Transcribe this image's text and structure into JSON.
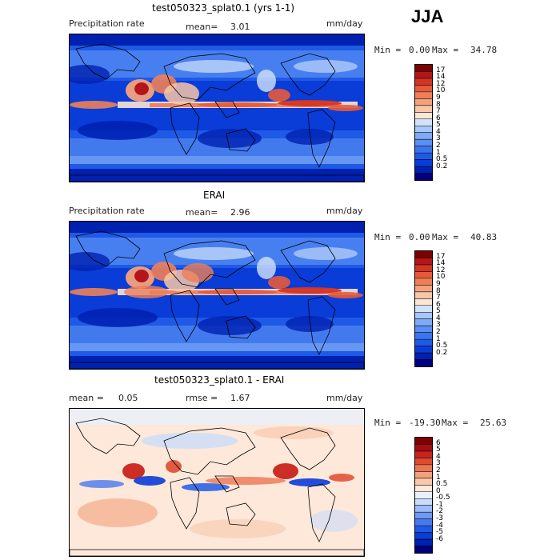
{
  "season": "JJA",
  "colormaps": {
    "precip": [
      "#00007f",
      "#0020b0",
      "#0a3cd8",
      "#1f5ae6",
      "#3b74ee",
      "#5a8ff3",
      "#7faaf6",
      "#a8c6f8",
      "#d2e2fa",
      "#fbe6d6",
      "#f8c6a8",
      "#f4a27d",
      "#ee7f58",
      "#e55a3a",
      "#d43424",
      "#b3161a",
      "#7f0000"
    ],
    "diff": [
      "#00007f",
      "#0020b0",
      "#0a3cd8",
      "#1f5ae6",
      "#4779ee",
      "#6f98f3",
      "#9cbcf7",
      "#c9dcfa",
      "#e8f0fb",
      "#fde8da",
      "#f9c8ab",
      "#f3a07c",
      "#eb7651",
      "#df4b2e",
      "#c9241c",
      "#a50d13",
      "#7f0000"
    ]
  },
  "chart_data": [
    {
      "type": "heatmap",
      "title": "test050323_splat0.1 (yrs 1-1)",
      "variable": "Precipitation rate",
      "mean_label": "mean=",
      "mean": "3.01",
      "units": "mm/day",
      "min_label": "Min =",
      "min": "0.00",
      "max_label": "Max =",
      "max": "34.78",
      "colorbar_levels": [
        "17",
        "14",
        "12",
        "10",
        "9",
        "8",
        "7",
        "6",
        "5",
        "4",
        "3",
        "2",
        "1",
        "0.5",
        "0.2"
      ]
    },
    {
      "type": "heatmap",
      "title": "ERAI",
      "variable": "Precipitation rate",
      "mean_label": "mean=",
      "mean": "2.96",
      "units": "mm/day",
      "min_label": "Min =",
      "min": "0.00",
      "max_label": "Max =",
      "max": "40.83",
      "colorbar_levels": [
        "17",
        "14",
        "12",
        "10",
        "9",
        "8",
        "7",
        "6",
        "5",
        "4",
        "3",
        "2",
        "1",
        "0.5",
        "0.2"
      ]
    },
    {
      "type": "heatmap",
      "title": "test050323_splat0.1 - ERAI",
      "mean_label": "mean =",
      "mean": "0.05",
      "rmse_label": "rmse =",
      "rmse": "1.67",
      "units": "mm/day",
      "min_label": "Min =",
      "min": "-19.30",
      "max_label": "Max =",
      "max": "25.63",
      "colorbar_levels": [
        "6",
        "5",
        "4",
        "3",
        "2",
        "1",
        "0.5",
        "0",
        "-0.5",
        "-1",
        "-2",
        "-3",
        "-4",
        "-5",
        "-6"
      ]
    }
  ]
}
